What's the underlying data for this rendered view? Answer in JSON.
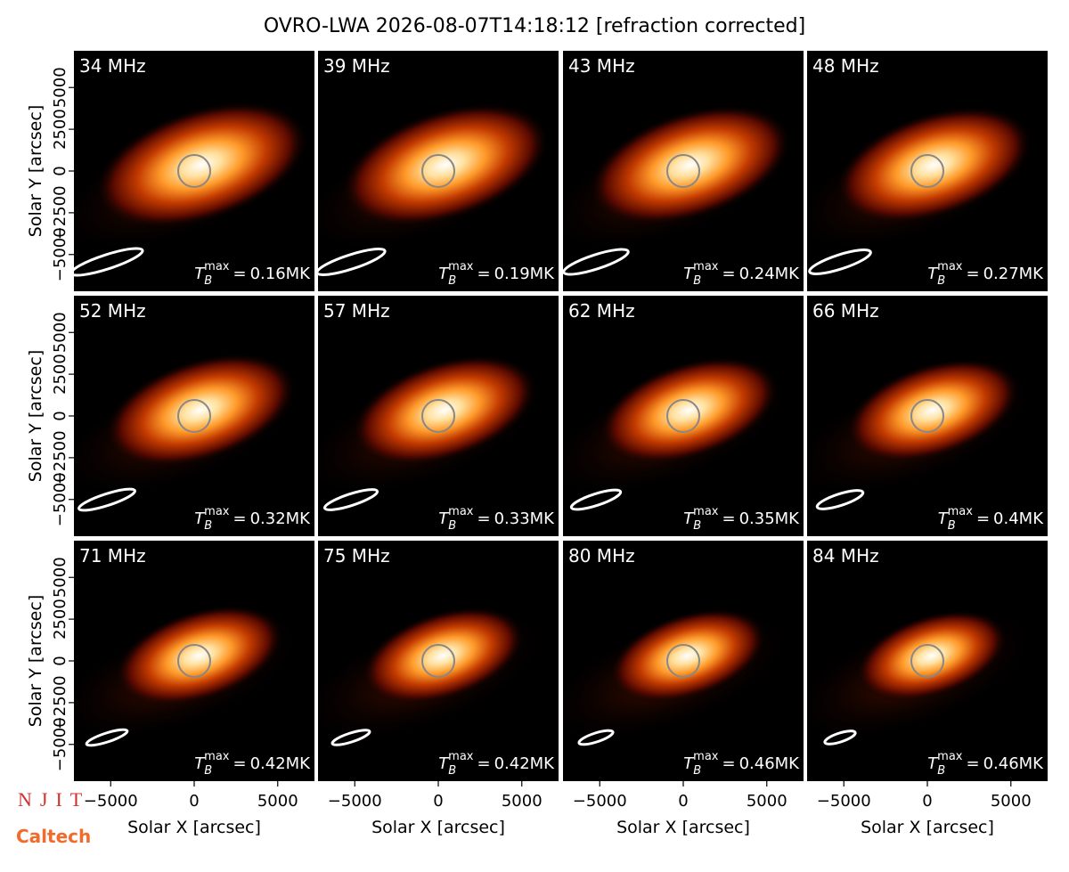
{
  "chart_data": {
    "type": "image",
    "title": "OVRO-LWA 2026-08-07T14:18:12 [refraction corrected]",
    "xlabel": "Solar X [arcsec]",
    "ylabel": "Solar Y [arcsec]",
    "xlim": [
      -7200,
      7200
    ],
    "ylim": [
      -7200,
      7200
    ],
    "xticks": [
      {
        "value": -5000,
        "label": "−5000"
      },
      0,
      5000
    ],
    "yticks": [
      {
        "value": -5000,
        "label": "−5000"
      },
      {
        "value": -2500,
        "label": "−2500"
      },
      0,
      2500,
      5000
    ],
    "tb_symbol": "T",
    "tb_sub": "B",
    "tb_sup": "max",
    "tb_eq": "=",
    "panels": [
      {
        "title": "34 MHz",
        "tb_max": "0.16MK"
      },
      {
        "title": "39 MHz",
        "tb_max": "0.19MK"
      },
      {
        "title": "43 MHz",
        "tb_max": "0.24MK"
      },
      {
        "title": "48 MHz",
        "tb_max": "0.27MK"
      },
      {
        "title": "52 MHz",
        "tb_max": "0.32MK"
      },
      {
        "title": "57 MHz",
        "tb_max": "0.33MK"
      },
      {
        "title": "62 MHz",
        "tb_max": "0.35MK"
      },
      {
        "title": "66 MHz",
        "tb_max": "0.4MK"
      },
      {
        "title": "71 MHz",
        "tb_max": "0.42MK"
      },
      {
        "title": "75 MHz",
        "tb_max": "0.42MK"
      },
      {
        "title": "80 MHz",
        "tb_max": "0.46MK"
      },
      {
        "title": "84 MHz",
        "tb_max": "0.46MK"
      }
    ]
  },
  "logos": {
    "njit": "NJIT",
    "caltech": "Caltech"
  }
}
